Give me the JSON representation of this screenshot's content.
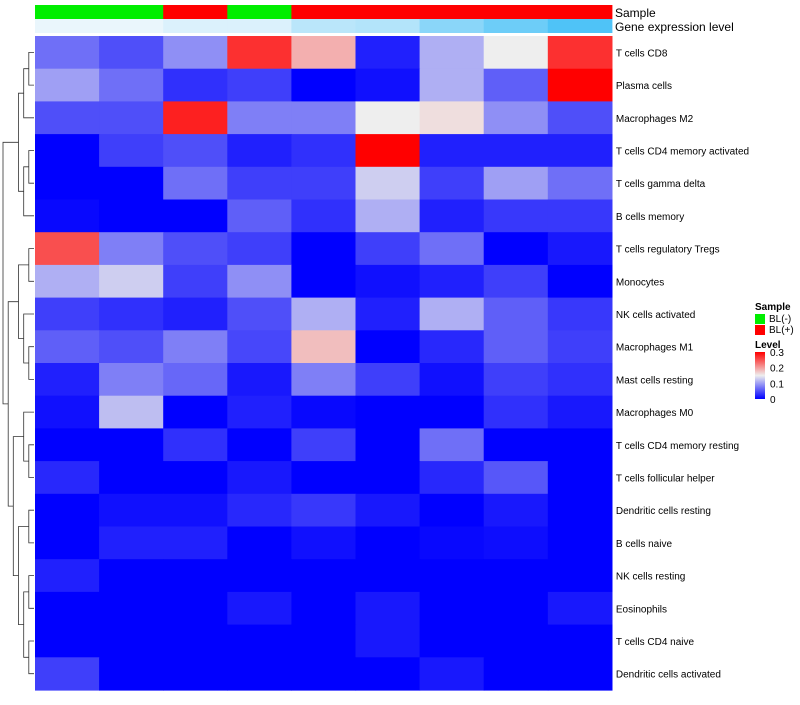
{
  "chart_data": {
    "type": "heatmap",
    "annotation_tracks": [
      {
        "name": "Sample",
        "values": [
          "BL(-)",
          "BL(-)",
          "BL(+)",
          "BL(-)",
          "BL(+)",
          "BL(+)",
          "BL(+)",
          "BL(+)",
          "BL(+)"
        ]
      },
      {
        "name": "Gene expression level",
        "values": [
          0.2,
          0.2,
          0.6,
          0.6,
          1.5,
          1.7,
          2.8,
          3.6,
          4.4
        ]
      }
    ],
    "rows": [
      "T cells CD8",
      "Plasma cells",
      "Macrophages M2",
      "T cells CD4 memory activated",
      "T cells gamma delta",
      "B cells memory",
      "T cells regulatory  Tregs",
      "Monocytes",
      "NK cells activated",
      "Macrophages M1",
      "Mast cells resting",
      "Macrophages M0",
      "T cells CD4 memory resting",
      "T cells follicular helper",
      "Dendritic cells resting",
      "B cells naive",
      "NK cells resting",
      "Eosinophils",
      "T cells CD4 naive",
      "Dendritic cells activated"
    ],
    "values": [
      [
        0.07,
        0.05,
        0.09,
        0.27,
        0.19,
        0.02,
        0.11,
        0.15,
        0.27
      ],
      [
        0.1,
        0.07,
        0.03,
        0.04,
        0.0,
        0.01,
        0.11,
        0.06,
        0.3
      ],
      [
        0.05,
        0.05,
        0.28,
        0.08,
        0.08,
        0.15,
        0.16,
        0.09,
        0.05
      ],
      [
        0.0,
        0.04,
        0.05,
        0.02,
        0.03,
        0.3,
        0.02,
        0.02,
        0.02
      ],
      [
        0.0,
        0.0,
        0.07,
        0.04,
        0.04,
        0.13,
        0.04,
        0.1,
        0.07
      ],
      [
        0.005,
        0.0,
        0.0,
        0.06,
        0.03,
        0.11,
        0.02,
        0.035,
        0.035
      ],
      [
        0.25,
        0.08,
        0.05,
        0.04,
        0.0,
        0.04,
        0.07,
        0.0,
        0.015
      ],
      [
        0.11,
        0.13,
        0.04,
        0.09,
        0.0,
        0.01,
        0.02,
        0.04,
        0.0
      ],
      [
        0.04,
        0.03,
        0.02,
        0.05,
        0.11,
        0.02,
        0.11,
        0.06,
        0.035
      ],
      [
        0.06,
        0.05,
        0.08,
        0.045,
        0.18,
        0.0,
        0.025,
        0.06,
        0.04
      ],
      [
        0.02,
        0.08,
        0.065,
        0.015,
        0.08,
        0.04,
        0.01,
        0.04,
        0.03
      ],
      [
        0.01,
        0.12,
        0.0,
        0.02,
        0.005,
        0.0,
        0.0,
        0.03,
        0.015
      ],
      [
        0.0,
        0.0,
        0.03,
        0.0,
        0.04,
        0.0,
        0.07,
        0.0,
        0.0
      ],
      [
        0.025,
        0.0,
        0.0,
        0.015,
        0.0,
        0.0,
        0.025,
        0.055,
        0.0
      ],
      [
        0.0,
        0.01,
        0.01,
        0.025,
        0.035,
        0.015,
        0.0,
        0.015,
        0.0
      ],
      [
        0.0,
        0.02,
        0.02,
        0.0,
        0.01,
        0.0,
        0.005,
        0.008,
        0.0
      ],
      [
        0.02,
        0.0,
        0.0,
        0.0,
        0.0,
        0.0,
        0.0,
        0.0,
        0.0
      ],
      [
        0.0,
        0.0,
        0.0,
        0.015,
        0.0,
        0.015,
        0.0,
        0.0,
        0.015
      ],
      [
        0.0,
        0.0,
        0.0,
        0.0,
        0.0,
        0.015,
        0.0,
        0.0,
        0.0
      ],
      [
        0.04,
        0.0,
        0.0,
        0.0,
        0.0,
        0.0,
        0.015,
        0.0,
        0.0
      ]
    ],
    "row_dendrogram": true,
    "column_order_fixed": true,
    "legend_position": "right",
    "legends": {
      "sample": {
        "title": "Sample",
        "items": [
          {
            "label": "BL(-)",
            "color": "#00ee00"
          },
          {
            "label": "BL(+)",
            "color": "#ff0000"
          }
        ]
      },
      "level": {
        "title": "Level",
        "ticks": [
          "0.3",
          "0.2",
          "0.1",
          "0"
        ],
        "tick_values": [
          0.3,
          0.2,
          0.1,
          0
        ],
        "range": [
          0,
          0.3
        ],
        "colors": {
          "low": "#0000ff",
          "mid": "#eeeeee",
          "high": "#ff0000"
        }
      }
    },
    "gene_expression_colors": {
      "low": "#eaf6fc",
      "high": "#4fc3f7"
    }
  }
}
